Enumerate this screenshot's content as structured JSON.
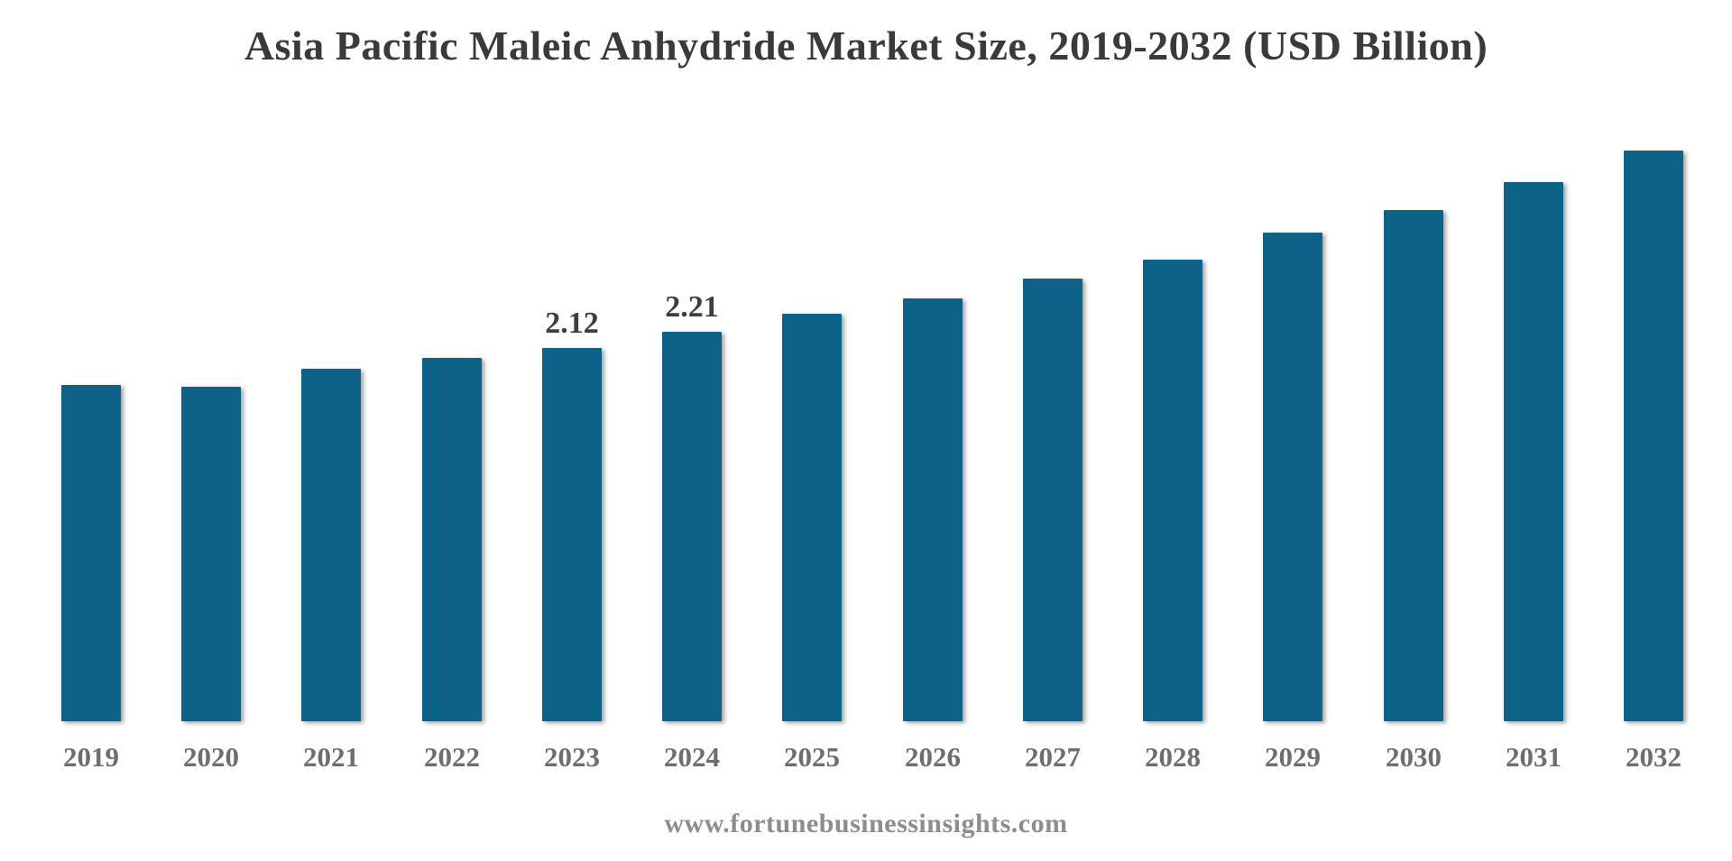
{
  "page": {
    "background_color": "#ffffff"
  },
  "chart_data": {
    "type": "bar",
    "title": "Asia Pacific Maleic Anhydride Market Size, 2019-2032 (USD Billion)",
    "xlabel": "",
    "ylabel": "",
    "categories": [
      "2019",
      "2020",
      "2021",
      "2022",
      "2023",
      "2024",
      "2025",
      "2026",
      "2027",
      "2028",
      "2029",
      "2030",
      "2031",
      "2032"
    ],
    "values": [
      1.91,
      1.9,
      2.0,
      2.06,
      2.12,
      2.21,
      2.31,
      2.4,
      2.51,
      2.62,
      2.77,
      2.9,
      3.06,
      3.24
    ],
    "data_labels": {
      "2023": "2.12",
      "2024": "2.21"
    },
    "ylim": [
      0,
      3.5
    ],
    "grid": false,
    "legend": false,
    "axes_visible": false,
    "bar_color": "#0e6288",
    "title_color": "#3a3a3a",
    "value_label_color": "#3e3e3e",
    "tick_label_color": "#6e6e6e",
    "source_color": "#8d8d8d",
    "source": "www.fortunebusinessinsights.com"
  }
}
